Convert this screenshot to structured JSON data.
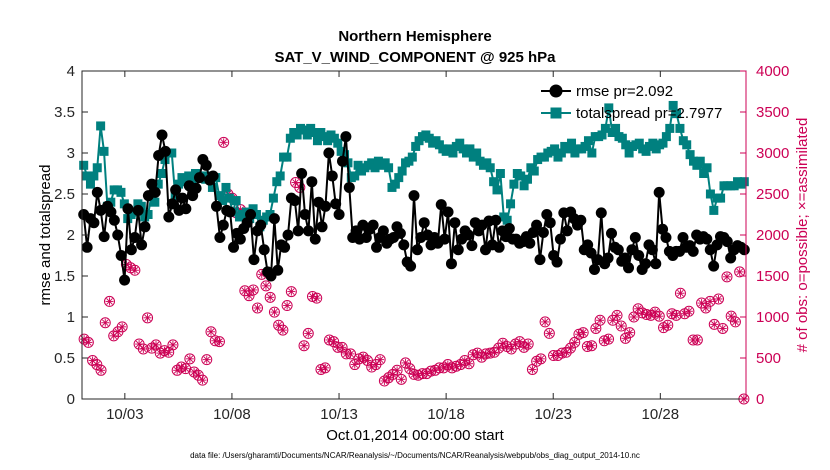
{
  "chart_data": {
    "type": "line",
    "title": "Northern Hemisphere",
    "subtitle": "SAT_V_WIND_COMPONENT @ 925 hPa",
    "xlabel": "Oct.01,2014 00:00:00 start",
    "ylabel_left": "rmse and totalspread",
    "ylabel_right": "# of obs: o=possible; ×=assimilated",
    "footer": "data file: /Users/gharamti/Documents/NCAR/Reanalysis/~/Documents/NCAR/Reanalysis/webpub/obs_diag_output_2014-10.nc",
    "x_tick_labels": [
      "10/03",
      "10/08",
      "10/13",
      "10/18",
      "10/23",
      "10/28"
    ],
    "x_tick_days": [
      3,
      8,
      13,
      18,
      23,
      28
    ],
    "xlim_days": [
      1.0,
      32.0
    ],
    "y_left_ticks": [
      "0",
      "0.5",
      "1",
      "1.5",
      "2",
      "2.5",
      "3",
      "3.5",
      "4"
    ],
    "ylim_left": [
      0,
      4
    ],
    "y_right_ticks": [
      "0",
      "500",
      "1000",
      "1500",
      "2000",
      "2500",
      "3000",
      "3500",
      "4000"
    ],
    "ylim_right": [
      0,
      4000
    ],
    "legend_position": "top-right",
    "colors": {
      "rmse": "#000000",
      "spread": "#00807f",
      "obs": "#cc0055",
      "axis": "#262626"
    },
    "series": [
      {
        "name": "rmse pr=2.092",
        "axis": "left",
        "values": [
          2.25,
          1.85,
          2.2,
          2.15,
          2.52,
          2.3,
          1.98,
          2.35,
          2.28,
          2.18,
          2.0,
          1.75,
          1.45,
          2.32,
          1.82,
          1.97,
          2.3,
          1.88,
          2.1,
          2.48,
          2.62,
          2.52,
          2.97,
          3.22,
          3.02,
          2.22,
          2.38,
          2.55,
          2.3,
          2.45,
          2.32,
          2.6,
          2.48,
          2.57,
          2.7,
          2.92,
          2.85,
          2.67,
          2.72,
          2.35,
          1.97,
          2.12,
          2.3,
          2.28,
          1.85,
          2.02,
          1.95,
          2.08,
          2.15,
          2.25,
          1.7,
          2.05,
          2.12,
          1.82,
          1.55,
          1.5,
          2.2,
          1.57,
          1.88,
          1.85,
          2.0,
          2.45,
          2.42,
          2.05,
          2.75,
          2.25,
          2.05,
          2.65,
          1.95,
          2.4,
          2.1,
          2.35,
          3.0,
          2.72,
          2.38,
          2.25,
          2.9,
          3.2,
          2.58,
          1.97,
          2.05,
          1.95,
          2.12,
          1.97,
          2.07,
          2.12,
          1.85,
          1.97,
          2.05,
          1.9,
          1.95,
          1.97,
          2.1,
          2.02,
          1.88,
          1.67,
          1.62,
          2.48,
          1.82,
          1.97,
          2.15,
          2.0,
          1.88,
          1.97,
          1.9,
          2.37,
          1.95,
          2.28,
          1.65,
          2.15,
          1.82,
          1.95,
          2.05,
          2.0,
          1.87,
          2.15,
          2.05,
          2.12,
          1.82,
          2.17,
          1.88,
          2.18,
          1.85,
          2.05,
          1.98,
          2.08,
          1.95,
          1.95,
          1.9,
          1.92,
          1.98,
          1.9,
          2.03,
          2.12,
          1.7,
          2.03,
          2.25,
          2.15,
          1.75,
          1.67,
          1.95,
          2.27,
          2.05,
          2.28,
          2.2,
          2.12,
          2.18,
          1.82,
          1.88,
          1.78,
          1.58,
          1.7,
          2.27,
          1.65,
          1.72,
          2.02,
          1.85,
          1.82,
          1.68,
          1.72,
          1.6,
          1.82,
          1.97,
          1.75,
          1.58,
          1.65,
          1.88,
          1.82,
          1.65,
          2.52,
          2.07,
          1.97,
          1.8,
          1.75,
          1.8,
          1.8,
          1.97,
          1.85,
          1.87,
          1.8,
          2.0,
          1.95,
          1.98,
          1.95,
          1.82,
          1.62,
          1.88,
          1.98,
          1.97,
          1.92,
          1.72,
          1.82,
          1.87,
          1.85,
          1.82
        ]
      },
      {
        "name": "totalspread pr=2.7977",
        "axis": "left",
        "values": [
          2.85,
          2.72,
          2.62,
          2.72,
          2.82,
          3.33,
          3.02,
          2.35,
          2.4,
          2.55,
          2.55,
          2.52,
          2.38,
          2.2,
          2.25,
          2.28,
          2.38,
          2.35,
          2.22,
          2.25,
          2.48,
          2.4,
          2.62,
          2.75,
          2.92,
          3.0,
          3.0,
          2.48,
          2.62,
          2.7,
          2.65,
          2.72,
          2.68,
          2.75,
          2.72,
          2.72,
          2.68,
          2.72,
          2.58,
          2.7,
          2.48,
          2.42,
          2.58,
          2.45,
          2.28,
          2.42,
          2.22,
          2.25,
          2.28,
          2.2,
          2.32,
          2.25,
          2.1,
          2.18,
          2.22,
          2.25,
          2.45,
          2.65,
          2.72,
          2.95,
          2.95,
          3.18,
          3.25,
          3.22,
          3.3,
          3.28,
          3.22,
          3.3,
          3.25,
          3.15,
          3.25,
          3.2,
          3.15,
          3.22,
          3.18,
          3.12,
          3.02,
          2.98,
          2.88,
          2.7,
          2.72,
          2.85,
          2.78,
          2.82,
          2.85,
          2.88,
          2.82,
          2.9,
          2.85,
          2.88,
          2.82,
          2.58,
          2.62,
          2.7,
          2.78,
          2.88,
          2.9,
          2.95,
          3.08,
          3.15,
          3.2,
          3.22,
          3.18,
          3.12,
          3.15,
          3.1,
          3.05,
          3.02,
          3.05,
          3.0,
          3.08,
          3.12,
          3.05,
          3.0,
          3.05,
          2.95,
          3.0,
          2.9,
          2.85,
          2.88,
          2.82,
          2.65,
          2.55,
          2.75,
          2.22,
          2.18,
          2.38,
          2.62,
          2.75,
          2.72,
          2.6,
          2.68,
          2.82,
          2.78,
          2.92,
          2.95,
          2.95,
          3.0,
          3.02,
          3.05,
          2.95,
          3.0,
          3.08,
          3.05,
          3.12,
          3.0,
          3.05,
          3.05,
          3.08,
          3.15,
          3.0,
          3.2,
          3.2,
          3.22,
          3.3,
          3.55,
          3.25,
          3.3,
          3.2,
          3.18,
          3.1,
          3.0,
          3.08,
          3.1,
          3.12,
          3.05,
          3.02,
          3.08,
          3.12,
          3.05,
          3.1,
          3.12,
          3.2,
          3.3,
          3.58,
          3.48,
          3.3,
          3.15,
          3.1,
          2.98,
          2.9,
          2.85,
          2.9,
          2.75,
          2.82,
          2.5,
          2.3,
          2.45,
          2.45,
          2.6,
          2.6,
          2.6,
          2.6,
          2.65,
          2.62,
          2.65
        ]
      },
      {
        "name": "# of obs (possible / assimilated)",
        "axis": "right",
        "values": [
          730,
          690,
          470,
          420,
          350,
          930,
          1190,
          770,
          820,
          880,
          1640,
          1600,
          1570,
          670,
          610,
          990,
          620,
          660,
          560,
          590,
          570,
          660,
          350,
          390,
          370,
          490,
          330,
          290,
          230,
          480,
          820,
          710,
          700,
          3130,
          2500,
          2450,
          2270,
          2310,
          1320,
          1260,
          1330,
          1110,
          1520,
          1380,
          1240,
          1060,
          900,
          840,
          1140,
          1310,
          2640,
          2580,
          650,
          800,
          1250,
          1230,
          360,
          380,
          720,
          700,
          630,
          630,
          550,
          550,
          420,
          490,
          510,
          470,
          390,
          420,
          480,
          220,
          260,
          300,
          350,
          240,
          440,
          370,
          300,
          290,
          310,
          310,
          340,
          350,
          380,
          380,
          420,
          380,
          400,
          420,
          470,
          430,
          540,
          560,
          510,
          550,
          560,
          570,
          620,
          680,
          640,
          610,
          670,
          700,
          630,
          670,
          360,
          460,
          490,
          940,
          800,
          530,
          530,
          560,
          570,
          620,
          690,
          790,
          810,
          640,
          650,
          860,
          960,
          710,
          730,
          960,
          1020,
          890,
          740,
          810,
          1000,
          1100,
          1050,
          1030,
          1020,
          1060,
          1010,
          870,
          900,
          1040,
          1020,
          1290,
          1040,
          1070,
          720,
          720,
          1170,
          1110,
          1190,
          910,
          1220,
          860,
          1490,
          1010,
          940,
          1550,
          0
        ]
      }
    ]
  }
}
